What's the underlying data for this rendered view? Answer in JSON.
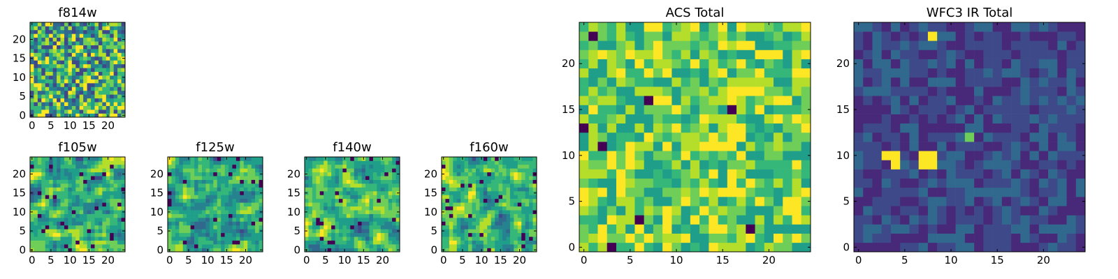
{
  "chart_data": [
    {
      "type": "heatmap",
      "title": "f814w",
      "xlabel": "",
      "ylabel": "",
      "xlim": [
        -0.5,
        24.5
      ],
      "ylim": [
        -0.5,
        24.5
      ],
      "xticks": [
        0,
        5,
        10,
        15,
        20
      ],
      "yticks": [
        0,
        5,
        10,
        15,
        20
      ],
      "grid_size": [
        25,
        25
      ],
      "colormap": "viridis",
      "pattern": "random noise",
      "grid": false
    },
    {
      "type": "heatmap",
      "title": "f105w",
      "xlabel": "",
      "ylabel": "",
      "xlim": [
        -0.5,
        24.5
      ],
      "ylim": [
        -0.5,
        24.5
      ],
      "xticks": [
        0,
        5,
        10,
        15,
        20
      ],
      "yticks": [
        0,
        5,
        10,
        15,
        20
      ],
      "grid_size": [
        25,
        25
      ],
      "colormap": "viridis",
      "pattern": "smoothed noise",
      "grid": false
    },
    {
      "type": "heatmap",
      "title": "f125w",
      "xlabel": "",
      "ylabel": "",
      "xlim": [
        -0.5,
        24.5
      ],
      "ylim": [
        -0.5,
        24.5
      ],
      "xticks": [
        0,
        5,
        10,
        15,
        20
      ],
      "yticks": [
        0,
        5,
        10,
        15,
        20
      ],
      "grid_size": [
        25,
        25
      ],
      "colormap": "viridis",
      "pattern": "smoothed noise",
      "grid": false
    },
    {
      "type": "heatmap",
      "title": "f140w",
      "xlabel": "",
      "ylabel": "",
      "xlim": [
        -0.5,
        24.5
      ],
      "ylim": [
        -0.5,
        24.5
      ],
      "xticks": [
        0,
        5,
        10,
        15,
        20
      ],
      "yticks": [
        0,
        5,
        10,
        15,
        20
      ],
      "grid_size": [
        25,
        25
      ],
      "colormap": "viridis",
      "pattern": "smoothed noise",
      "grid": false
    },
    {
      "type": "heatmap",
      "title": "f160w",
      "xlabel": "",
      "ylabel": "",
      "xlim": [
        -0.5,
        24.5
      ],
      "ylim": [
        -0.5,
        24.5
      ],
      "xticks": [
        0,
        5,
        10,
        15,
        20
      ],
      "yticks": [
        0,
        5,
        10,
        15,
        20
      ],
      "grid_size": [
        25,
        25
      ],
      "colormap": "viridis",
      "pattern": "smoothed noise",
      "grid": false
    },
    {
      "type": "heatmap",
      "title": "ACS Total",
      "xlabel": "",
      "ylabel": "",
      "xlim": [
        -0.5,
        24.5
      ],
      "ylim": [
        -0.5,
        24.5
      ],
      "xticks": [
        0,
        5,
        10,
        15,
        20
      ],
      "yticks": [
        0,
        5,
        10,
        15,
        20
      ],
      "grid_size": [
        25,
        25
      ],
      "colormap": "viridis",
      "pattern": "random noise, mostly bright",
      "dark_cells": [
        [
          1,
          23
        ],
        [
          7,
          16
        ],
        [
          16,
          15
        ],
        [
          6,
          3
        ],
        [
          18,
          2
        ],
        [
          3,
          0
        ],
        [
          0,
          13
        ],
        [
          2,
          11
        ]
      ],
      "grid": false
    },
    {
      "type": "heatmap",
      "title": "WFC3 IR Total",
      "xlabel": "",
      "ylabel": "",
      "xlim": [
        -0.5,
        24.5
      ],
      "ylim": [
        -0.5,
        24.5
      ],
      "xticks": [
        0,
        5,
        10,
        15,
        20
      ],
      "yticks": [
        0,
        5,
        10,
        15,
        20
      ],
      "grid_size": [
        25,
        25
      ],
      "colormap": "viridis",
      "pattern": "dark background with a few bright pixels",
      "bright_cells": [
        [
          8,
          23
        ],
        [
          3,
          10
        ],
        [
          4,
          10
        ],
        [
          4,
          9
        ],
        [
          7,
          10
        ],
        [
          8,
          10
        ],
        [
          7,
          9
        ],
        [
          8,
          9
        ]
      ],
      "medium_cells": [
        [
          12,
          12
        ]
      ],
      "grid": false
    }
  ],
  "colors": {
    "viridis": [
      "#440154",
      "#482878",
      "#3e4989",
      "#31688e",
      "#26828e",
      "#1f9e89",
      "#35b779",
      "#6ece58",
      "#b5de2b",
      "#fde725"
    ],
    "frame": "#000000",
    "background": "#ffffff"
  }
}
